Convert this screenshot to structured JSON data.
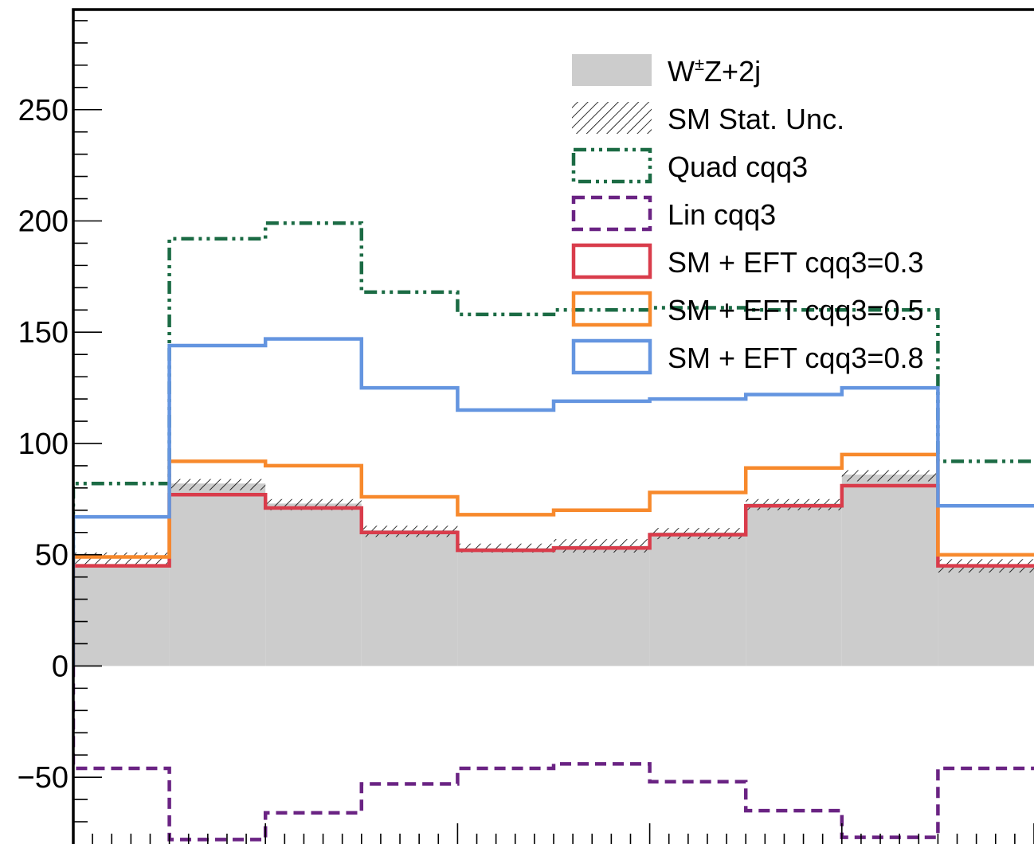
{
  "chart_data": {
    "type": "histogram-step",
    "x": {
      "bins": 10,
      "range": [
        0,
        10
      ]
    },
    "y": {
      "range": [
        -80,
        295
      ],
      "tick_labels": [
        "250",
        "200",
        "150",
        "100",
        "50",
        "0",
        "−50"
      ],
      "tick_values": [
        250,
        200,
        150,
        100,
        50,
        0,
        -50
      ]
    },
    "series": [
      {
        "name_prefix": "W",
        "name_sup": "±",
        "name_suffix": "Z+2j",
        "kind": "filled",
        "color": "#cccccc",
        "values": [
          45,
          82,
          73,
          61,
          53,
          54,
          60,
          73,
          86,
          45
        ]
      },
      {
        "name": "SM Stat. Unc.",
        "kind": "hatch",
        "color": "#000000",
        "band": [
          [
            45,
            51
          ],
          [
            79,
            84
          ],
          [
            70,
            75
          ],
          [
            58,
            63
          ],
          [
            51,
            55
          ],
          [
            51,
            57
          ],
          [
            57,
            62
          ],
          [
            70,
            75
          ],
          [
            83,
            88
          ],
          [
            42,
            48
          ]
        ]
      },
      {
        "name": "Quad cqq3",
        "kind": "line",
        "style": "dash-dot-dot",
        "color": "#1b6b44",
        "values": [
          82,
          192,
          199,
          168,
          158,
          160,
          161,
          160,
          160,
          92
        ]
      },
      {
        "name": "Lin cqq3",
        "kind": "line",
        "style": "dashed",
        "color": "#6a2383",
        "values": [
          -46,
          -78,
          -66,
          -53,
          -46,
          -44,
          -52,
          -65,
          -77,
          -46
        ]
      },
      {
        "name": "SM + EFT cqq3=0.3",
        "kind": "line",
        "style": "solid",
        "color": "#d93c4b",
        "values": [
          45,
          77,
          71,
          60,
          52,
          53,
          59,
          72,
          81,
          45
        ]
      },
      {
        "name": "SM + EFT cqq3=0.5",
        "kind": "line",
        "style": "solid",
        "color": "#f7892c",
        "values": [
          49,
          92,
          90,
          76,
          68,
          70,
          78,
          89,
          95,
          50
        ]
      },
      {
        "name": "SM + EFT cqq3=0.8",
        "kind": "line",
        "style": "solid",
        "color": "#6495e0",
        "values": [
          67,
          144,
          147,
          125,
          115,
          119,
          120,
          122,
          125,
          72
        ]
      }
    ],
    "legend": {
      "placement": "top-right"
    }
  }
}
